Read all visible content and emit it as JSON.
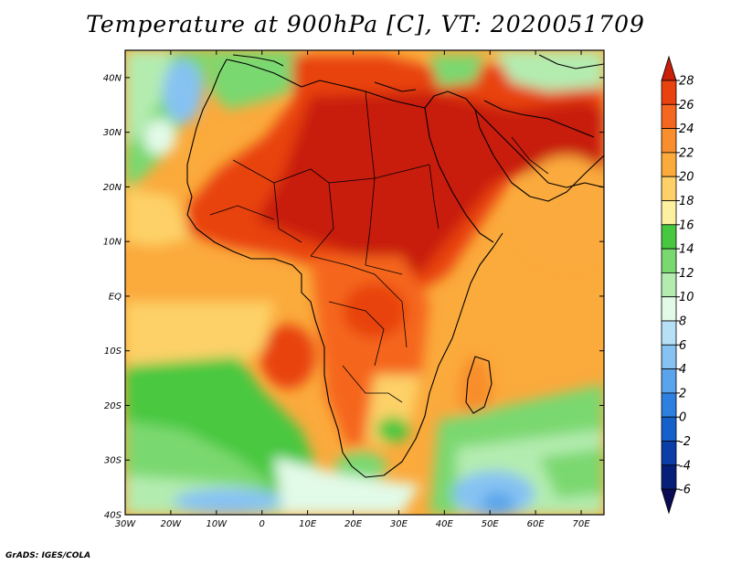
{
  "title": "Temperature at 900hPa [C], VT: 2020051709",
  "credit": "GrADS: IGES/COLA",
  "axes": {
    "lat_ticks": [
      "40N",
      "30N",
      "20N",
      "10N",
      "EQ",
      "10S",
      "20S",
      "30S",
      "40S"
    ],
    "lon_ticks": [
      "30W",
      "20W",
      "10W",
      "0",
      "10E",
      "20E",
      "30E",
      "40E",
      "50E",
      "60E",
      "70E"
    ]
  },
  "chart_data": {
    "type": "heatmap",
    "title": "Temperature at 900hPa [C], VT: 2020051709",
    "variable": "Temperature at 900hPa",
    "units": "C",
    "valid_time": "2020051709",
    "lon_range": [
      -30,
      75
    ],
    "lat_range": [
      -40,
      45
    ],
    "colorbar": {
      "levels": [
        28,
        26,
        24,
        22,
        20,
        18,
        16,
        14,
        12,
        10,
        8,
        6,
        4,
        2,
        0,
        -2,
        -4,
        -6
      ],
      "colors": [
        "#c81e0a",
        "#e8420f",
        "#f5661e",
        "#f88e2c",
        "#fbaa3c",
        "#fdd168",
        "#fdf0a0",
        "#48c840",
        "#7ad870",
        "#b4ecb0",
        "#e2fae8",
        "#b6e0f6",
        "#86c2f2",
        "#5aa4ec",
        "#2e80e0",
        "#1660cc",
        "#0c3ea8",
        "#06207a",
        "#0a0a55"
      ]
    }
  }
}
